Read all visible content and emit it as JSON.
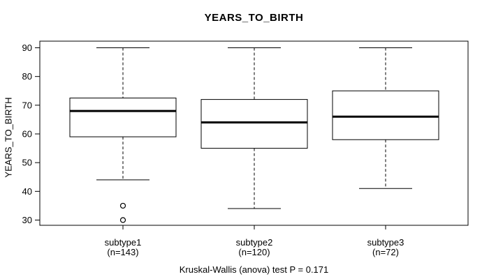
{
  "chart_data": {
    "type": "boxplot",
    "title": "YEARS_TO_BIRTH",
    "ylabel": "YEARS_TO_BIRTH",
    "caption": "Kruskal-Wallis (anova) test P = 0.171",
    "yticks": [
      30,
      40,
      50,
      60,
      70,
      80,
      90
    ],
    "ylim": [
      27.6,
      92.4
    ],
    "grid": false,
    "legend": "none",
    "box_style": {
      "whisker_line": "dashed",
      "stroke_color": "#000000",
      "median_color": "#000000",
      "fill_color": "#ffffff"
    },
    "groups": [
      {
        "label": "subtype1",
        "count_label": "(n=143)",
        "n": 143,
        "whisker_low": 44,
        "q1": 59,
        "median": 68,
        "q3": 72.5,
        "whisker_high": 90,
        "outliers": [
          35,
          30
        ]
      },
      {
        "label": "subtype2",
        "count_label": "(n=120)",
        "n": 120,
        "whisker_low": 34,
        "q1": 55,
        "median": 64,
        "q3": 72,
        "whisker_high": 90,
        "outliers": []
      },
      {
        "label": "subtype3",
        "count_label": "(n=72)",
        "n": 72,
        "whisker_low": 41,
        "q1": 58,
        "median": 66,
        "q3": 75,
        "whisker_high": 90,
        "outliers": []
      }
    ]
  }
}
